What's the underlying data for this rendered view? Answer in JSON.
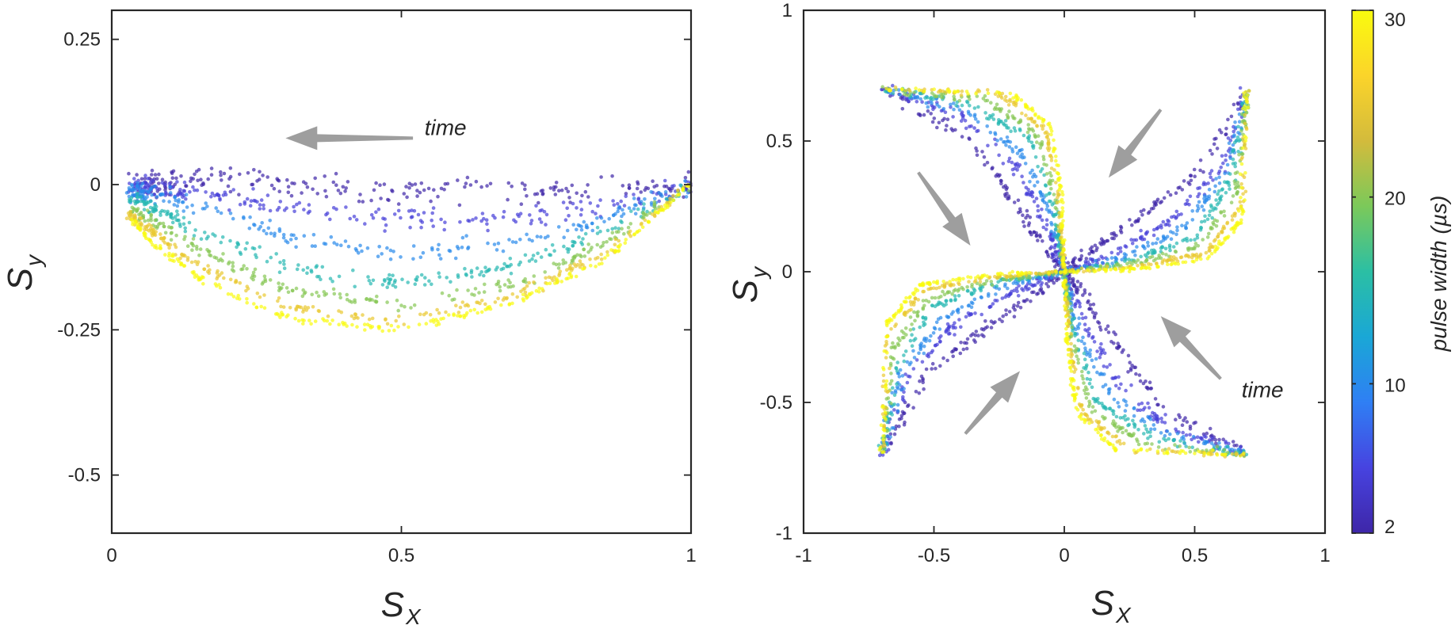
{
  "colors": {
    "colormap": [
      "#3e26a8",
      "#4743e0",
      "#2f7ff4",
      "#1aa7d6",
      "#2bbfa4",
      "#7bc95a",
      "#d3bb3c",
      "#fbd42a",
      "#f9fb0e"
    ],
    "arrow": "#9e9e9e",
    "axes": "#262626"
  },
  "chart_data": [
    {
      "type": "scatter",
      "panel": "left",
      "xlabel": "S",
      "xlabel_sub": "X",
      "ylabel": "S",
      "ylabel_sub": "y",
      "xlim": [
        0,
        1
      ],
      "ylim": [
        -0.6,
        0.3
      ],
      "xticks": [
        0,
        0.5,
        1
      ],
      "xtick_labels": [
        "0",
        "0.5",
        "1"
      ],
      "yticks": [
        0.25,
        0,
        -0.25,
        -0.5
      ],
      "ytick_labels": [
        "0.25",
        "0",
        "-0.25",
        "-0.5"
      ],
      "annotation": {
        "text": "time",
        "x": 0.54,
        "y": 0.085
      },
      "arrows": [
        {
          "from": [
            0.52,
            0.08
          ],
          "to": [
            0.3,
            0.08
          ]
        }
      ],
      "color_variable": "pulse width (µs)",
      "series": [
        {
          "pulse_width": 2,
          "trajectory": [
            [
              1.0,
              0.0
            ],
            [
              0.85,
              -0.01
            ],
            [
              0.7,
              -0.01
            ],
            [
              0.5,
              -0.01
            ],
            [
              0.3,
              0.0
            ],
            [
              0.15,
              0.01
            ],
            [
              0.08,
              0.0
            ],
            [
              0.04,
              0.0
            ]
          ]
        },
        {
          "pulse_width": 5,
          "trajectory": [
            [
              1.0,
              0.0
            ],
            [
              0.85,
              -0.04
            ],
            [
              0.7,
              -0.055
            ],
            [
              0.5,
              -0.06
            ],
            [
              0.3,
              -0.04
            ],
            [
              0.15,
              -0.015
            ],
            [
              0.07,
              -0.005
            ],
            [
              0.03,
              -0.005
            ]
          ]
        },
        {
          "pulse_width": 10,
          "trajectory": [
            [
              1.0,
              0.0
            ],
            [
              0.85,
              -0.06
            ],
            [
              0.7,
              -0.1
            ],
            [
              0.5,
              -0.12
            ],
            [
              0.3,
              -0.09
            ],
            [
              0.15,
              -0.04
            ],
            [
              0.07,
              -0.015
            ],
            [
              0.03,
              -0.01
            ]
          ]
        },
        {
          "pulse_width": 15,
          "trajectory": [
            [
              1.0,
              0.0
            ],
            [
              0.85,
              -0.08
            ],
            [
              0.7,
              -0.14
            ],
            [
              0.5,
              -0.17
            ],
            [
              0.3,
              -0.14
            ],
            [
              0.15,
              -0.08
            ],
            [
              0.07,
              -0.04
            ],
            [
              0.03,
              -0.02
            ]
          ]
        },
        {
          "pulse_width": 20,
          "trajectory": [
            [
              1.0,
              0.0
            ],
            [
              0.85,
              -0.1
            ],
            [
              0.7,
              -0.17
            ],
            [
              0.5,
              -0.21
            ],
            [
              0.3,
              -0.18
            ],
            [
              0.15,
              -0.11
            ],
            [
              0.07,
              -0.06
            ],
            [
              0.03,
              -0.04
            ]
          ]
        },
        {
          "pulse_width": 25,
          "trajectory": [
            [
              1.0,
              0.0
            ],
            [
              0.85,
              -0.12
            ],
            [
              0.7,
              -0.19
            ],
            [
              0.5,
              -0.235
            ],
            [
              0.3,
              -0.21
            ],
            [
              0.15,
              -0.14
            ],
            [
              0.07,
              -0.08
            ],
            [
              0.03,
              -0.05
            ]
          ]
        },
        {
          "pulse_width": 30,
          "trajectory": [
            [
              1.0,
              0.0
            ],
            [
              0.85,
              -0.13
            ],
            [
              0.7,
              -0.2
            ],
            [
              0.5,
              -0.25
            ],
            [
              0.3,
              -0.23
            ],
            [
              0.15,
              -0.16
            ],
            [
              0.07,
              -0.1
            ],
            [
              0.03,
              -0.055
            ]
          ]
        }
      ]
    },
    {
      "type": "scatter",
      "panel": "right",
      "xlabel": "S",
      "xlabel_sub": "X",
      "ylabel": "S",
      "ylabel_sub": "y",
      "xlim": [
        -1,
        1
      ],
      "ylim": [
        -1,
        1
      ],
      "xticks": [
        -1,
        -0.5,
        0,
        0.5,
        1
      ],
      "xtick_labels": [
        "-1",
        "-0.5",
        "0",
        "0.5",
        "1"
      ],
      "yticks": [
        1,
        0.5,
        0,
        -0.5,
        -1
      ],
      "ytick_labels": [
        "1",
        "0.5",
        "0",
        "-0.5",
        "-1"
      ],
      "annotation": {
        "text": "time",
        "x": 0.68,
        "y": -0.48
      },
      "arrows": [
        {
          "from": [
            -0.56,
            0.38
          ],
          "to": [
            -0.36,
            0.1
          ]
        },
        {
          "from": [
            0.37,
            0.62
          ],
          "to": [
            0.17,
            0.36
          ]
        },
        {
          "from": [
            0.6,
            -0.41
          ],
          "to": [
            0.37,
            -0.17
          ]
        },
        {
          "from": [
            -0.38,
            -0.62
          ],
          "to": [
            -0.17,
            -0.38
          ]
        }
      ],
      "symmetry": "four-fold rotation about origin (arms rotate 90° each)",
      "color_variable": "pulse width (µs)",
      "series": [
        {
          "pulse_width": 2,
          "arm_trajectory": [
            [
              -0.7,
              0.7
            ],
            [
              -0.38,
              0.52
            ],
            [
              -0.2,
              0.28
            ],
            [
              -0.08,
              0.1
            ],
            [
              0.0,
              0.0
            ]
          ]
        },
        {
          "pulse_width": 5,
          "arm_trajectory": [
            [
              -0.7,
              0.7
            ],
            [
              -0.4,
              0.6
            ],
            [
              -0.2,
              0.42
            ],
            [
              -0.07,
              0.18
            ],
            [
              0.0,
              0.0
            ]
          ]
        },
        {
          "pulse_width": 10,
          "arm_trajectory": [
            [
              -0.7,
              0.7
            ],
            [
              -0.38,
              0.62
            ],
            [
              -0.17,
              0.46
            ],
            [
              -0.05,
              0.22
            ],
            [
              0.0,
              0.0
            ]
          ]
        },
        {
          "pulse_width": 15,
          "arm_trajectory": [
            [
              -0.7,
              0.7
            ],
            [
              -0.35,
              0.64
            ],
            [
              -0.13,
              0.5
            ],
            [
              -0.04,
              0.25
            ],
            [
              0.0,
              0.0
            ]
          ]
        },
        {
          "pulse_width": 20,
          "arm_trajectory": [
            [
              -0.7,
              0.7
            ],
            [
              -0.3,
              0.66
            ],
            [
              -0.1,
              0.52
            ],
            [
              -0.03,
              0.26
            ],
            [
              0.0,
              0.0
            ]
          ]
        },
        {
          "pulse_width": 25,
          "arm_trajectory": [
            [
              -0.7,
              0.7
            ],
            [
              -0.25,
              0.68
            ],
            [
              -0.07,
              0.54
            ],
            [
              -0.02,
              0.27
            ],
            [
              0.0,
              0.0
            ]
          ]
        },
        {
          "pulse_width": 30,
          "arm_trajectory": [
            [
              -0.7,
              0.7
            ],
            [
              -0.2,
              0.68
            ],
            [
              -0.05,
              0.55
            ],
            [
              -0.01,
              0.28
            ],
            [
              0.0,
              0.0
            ]
          ]
        }
      ]
    },
    {
      "type": "colorbar",
      "label": "pulse width (µs)",
      "range": [
        2,
        30
      ],
      "ticks": [
        2,
        10,
        20,
        30
      ],
      "tick_labels": [
        "2",
        "10",
        "20",
        "30"
      ]
    }
  ]
}
